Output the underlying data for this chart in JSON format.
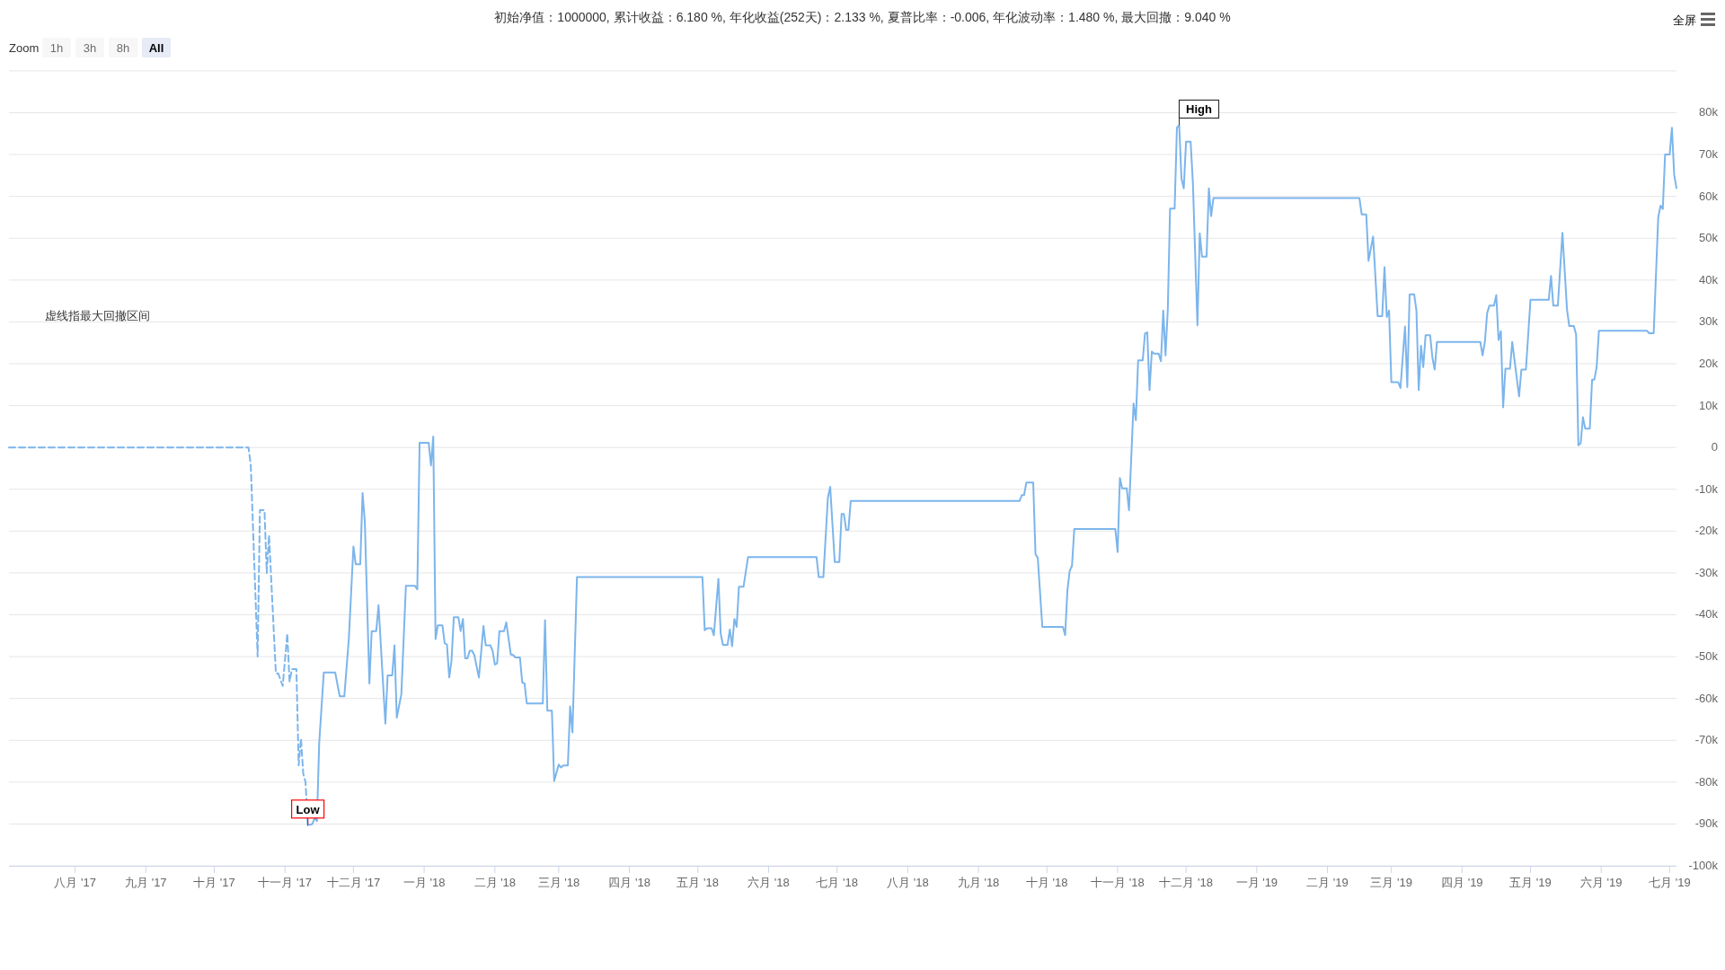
{
  "chart_data": {
    "type": "line",
    "title": "初始净值：1000000, 累计收益：6.180 %, 年化收益(252天)：2.133 %, 夏普比率：-0.006, 年化波动率：1.480 %, 最大回撤：9.040 %",
    "xlim": [
      "2017-07-03",
      "2019-07-04"
    ],
    "ylim": [
      -100000,
      90000
    ],
    "xticks": [
      {
        "value": "2017-08-01",
        "label": "八月 '17"
      },
      {
        "value": "2017-09-01",
        "label": "九月 '17"
      },
      {
        "value": "2017-10-01",
        "label": "十月 '17"
      },
      {
        "value": "2017-11-01",
        "label": "十一月 '17"
      },
      {
        "value": "2017-12-01",
        "label": "十二月 '17"
      },
      {
        "value": "2018-01-01",
        "label": "一月 '18"
      },
      {
        "value": "2018-02-01",
        "label": "二月 '18"
      },
      {
        "value": "2018-03-01",
        "label": "三月 '18"
      },
      {
        "value": "2018-04-01",
        "label": "四月 '18"
      },
      {
        "value": "2018-05-01",
        "label": "五月 '18"
      },
      {
        "value": "2018-06-01",
        "label": "六月 '18"
      },
      {
        "value": "2018-07-01",
        "label": "七月 '18"
      },
      {
        "value": "2018-08-01",
        "label": "八月 '18"
      },
      {
        "value": "2018-09-01",
        "label": "九月 '18"
      },
      {
        "value": "2018-10-01",
        "label": "十月 '18"
      },
      {
        "value": "2018-11-01",
        "label": "十一月 '18"
      },
      {
        "value": "2018-12-01",
        "label": "十二月 '18"
      },
      {
        "value": "2019-01-01",
        "label": "一月 '19"
      },
      {
        "value": "2019-02-01",
        "label": "二月 '19"
      },
      {
        "value": "2019-03-01",
        "label": "三月 '19"
      },
      {
        "value": "2019-04-01",
        "label": "四月 '19"
      },
      {
        "value": "2019-05-01",
        "label": "五月 '19"
      },
      {
        "value": "2019-06-01",
        "label": "六月 '19"
      },
      {
        "value": "2019-07-01",
        "label": "七月 '19"
      }
    ],
    "yticks": [
      {
        "value": -100000,
        "label": "-100k"
      },
      {
        "value": -90000,
        "label": "-90k"
      },
      {
        "value": -80000,
        "label": "-80k"
      },
      {
        "value": -70000,
        "label": "-70k"
      },
      {
        "value": -60000,
        "label": "-60k"
      },
      {
        "value": -50000,
        "label": "-50k"
      },
      {
        "value": -40000,
        "label": "-40k"
      },
      {
        "value": -30000,
        "label": "-30k"
      },
      {
        "value": -20000,
        "label": "-20k"
      },
      {
        "value": -10000,
        "label": "-10k"
      },
      0,
      {
        "value": 10000,
        "label": "10k"
      },
      {
        "value": 20000,
        "label": "20k"
      },
      {
        "value": 30000,
        "label": "30k"
      },
      {
        "value": 40000,
        "label": "40k"
      },
      {
        "value": 50000,
        "label": "50k"
      },
      {
        "value": 60000,
        "label": "60k"
      },
      {
        "value": 70000,
        "label": "70k"
      },
      {
        "value": 80000,
        "label": "80k"
      }
    ],
    "grid": "y",
    "marker": "none",
    "series": [
      {
        "color": "#7cb5ec",
        "line_style": "dashed",
        "x": [
          "2017-07-03",
          "2017-10-16",
          "2017-10-17",
          "2017-10-20",
          "2017-10-21",
          "2017-10-23",
          "2017-10-24",
          "2017-10-25",
          "2017-10-28",
          "2017-10-29",
          "2017-10-31",
          "2017-11-02",
          "2017-11-03",
          "2017-11-04",
          "2017-11-06",
          "2017-11-07",
          "2017-11-08",
          "2017-11-09",
          "2017-11-10",
          "2017-11-11"
        ],
        "values": [
          0,
          0,
          -4300,
          -50000,
          -15000,
          -15000,
          -30000,
          -21000,
          -54000,
          -54000,
          -57000,
          -44500,
          -56000,
          -53000,
          -53000,
          -76000,
          -69600,
          -78000,
          -80000,
          -90300
        ]
      },
      {
        "color": "#7cb5ec",
        "line_style": "solid",
        "x": [
          "2017-11-11",
          "2017-11-13",
          "2017-11-14",
          "2017-11-15",
          "2017-11-16",
          "2017-11-18",
          "2017-11-23",
          "2017-11-25",
          "2017-11-27",
          "2017-11-29",
          "2017-12-01",
          "2017-12-02",
          "2017-12-04",
          "2017-12-05",
          "2017-12-06",
          "2017-12-08",
          "2017-12-09",
          "2017-12-11",
          "2017-12-12",
          "2017-12-15",
          "2017-12-16",
          "2017-12-18",
          "2017-12-19",
          "2017-12-20",
          "2017-12-22",
          "2017-12-24",
          "2017-12-28",
          "2017-12-29",
          "2017-12-30",
          "2018-01-03",
          "2018-01-04",
          "2018-01-05",
          "2018-01-06",
          "2018-01-07",
          "2018-01-09",
          "2018-01-10",
          "2018-01-11",
          "2018-01-12",
          "2018-01-13",
          "2018-01-14",
          "2018-01-16",
          "2018-01-17",
          "2018-01-18",
          "2018-01-19",
          "2018-01-20",
          "2018-01-21",
          "2018-01-22",
          "2018-01-23",
          "2018-01-25",
          "2018-01-27",
          "2018-01-28",
          "2018-01-30",
          "2018-01-31",
          "2018-02-01",
          "2018-02-02",
          "2018-02-03",
          "2018-02-05",
          "2018-02-06",
          "2018-02-08",
          "2018-02-09",
          "2018-02-10",
          "2018-02-12",
          "2018-02-13",
          "2018-02-14",
          "2018-02-15",
          "2018-02-22",
          "2018-02-23",
          "2018-02-24",
          "2018-02-26",
          "2018-02-27",
          "2018-03-01",
          "2018-03-02",
          "2018-03-03",
          "2018-03-05",
          "2018-03-06",
          "2018-03-07",
          "2018-03-09",
          "2018-05-03",
          "2018-05-04",
          "2018-05-05",
          "2018-05-07",
          "2018-05-08",
          "2018-05-10",
          "2018-05-11",
          "2018-05-12",
          "2018-05-14",
          "2018-05-15",
          "2018-05-16",
          "2018-05-17",
          "2018-05-18",
          "2018-05-19",
          "2018-05-21",
          "2018-05-23",
          "2018-06-22",
          "2018-06-23",
          "2018-06-25",
          "2018-06-27",
          "2018-06-28",
          "2018-06-30",
          "2018-07-02",
          "2018-07-03",
          "2018-07-04",
          "2018-07-05",
          "2018-07-06",
          "2018-07-07",
          "2018-09-19",
          "2018-09-20",
          "2018-09-21",
          "2018-09-22",
          "2018-09-25",
          "2018-09-26",
          "2018-09-27",
          "2018-09-29",
          "2018-10-08",
          "2018-10-09",
          "2018-10-10",
          "2018-10-11",
          "2018-10-12",
          "2018-10-13",
          "2018-10-31",
          "2018-11-01",
          "2018-11-02",
          "2018-11-03",
          "2018-11-05",
          "2018-11-06",
          "2018-11-08",
          "2018-11-09",
          "2018-11-10",
          "2018-11-12",
          "2018-11-13",
          "2018-11-14",
          "2018-11-15",
          "2018-11-16",
          "2018-11-17",
          "2018-11-19",
          "2018-11-20",
          "2018-11-21",
          "2018-11-22",
          "2018-11-23",
          "2018-11-24",
          "2018-11-26",
          "2018-11-27",
          "2018-11-28",
          "2018-11-29",
          "2018-11-30",
          "2018-12-01",
          "2018-12-03",
          "2018-12-04",
          "2018-12-06",
          "2018-12-07",
          "2018-12-08",
          "2018-12-10",
          "2018-12-11",
          "2018-12-12",
          "2018-12-13",
          "2019-02-15",
          "2019-02-16",
          "2019-02-18",
          "2019-02-19",
          "2019-02-21",
          "2019-02-23",
          "2019-02-25",
          "2019-02-26",
          "2019-02-27",
          "2019-02-28",
          "2019-03-01",
          "2019-03-04",
          "2019-03-05",
          "2019-03-07",
          "2019-03-08",
          "2019-03-09",
          "2019-03-11",
          "2019-03-12",
          "2019-03-13",
          "2019-03-14",
          "2019-03-15",
          "2019-03-16",
          "2019-03-18",
          "2019-03-19",
          "2019-03-20",
          "2019-03-21",
          "2019-04-09",
          "2019-04-10",
          "2019-04-11",
          "2019-04-12",
          "2019-04-13",
          "2019-04-15",
          "2019-04-16",
          "2019-04-17",
          "2019-04-18",
          "2019-04-19",
          "2019-04-20",
          "2019-04-22",
          "2019-04-23",
          "2019-04-26",
          "2019-04-27",
          "2019-04-29",
          "2019-05-01",
          "2019-05-09",
          "2019-05-10",
          "2019-05-11",
          "2019-05-13",
          "2019-05-15",
          "2019-05-17",
          "2019-05-18",
          "2019-05-20",
          "2019-05-21",
          "2019-05-22",
          "2019-05-23",
          "2019-05-24",
          "2019-05-25",
          "2019-05-27",
          "2019-05-28",
          "2019-05-29",
          "2019-05-30",
          "2019-05-31",
          "2019-06-21",
          "2019-06-22",
          "2019-06-24",
          "2019-06-26",
          "2019-06-27",
          "2019-06-28",
          "2019-06-29",
          "2019-07-01",
          "2019-07-02",
          "2019-07-03",
          "2019-07-04"
        ],
        "values": [
          -90300,
          -90000,
          -88600,
          -89300,
          -70600,
          -53800,
          -53800,
          -59500,
          -59500,
          -45600,
          -23700,
          -27900,
          -27900,
          -10900,
          -17800,
          -56400,
          -43900,
          -43900,
          -37700,
          -66000,
          -54500,
          -54500,
          -47300,
          -64600,
          -59000,
          -33100,
          -33100,
          -33900,
          1100,
          1100,
          -4300,
          2600,
          -45800,
          -42500,
          -42500,
          -46800,
          -47100,
          -55000,
          -50900,
          -40600,
          -40600,
          -43900,
          -41000,
          -50400,
          -50400,
          -48600,
          -48600,
          -49600,
          -55000,
          -42700,
          -47300,
          -47300,
          -48600,
          -51900,
          -51600,
          -43900,
          -43900,
          -41800,
          -49500,
          -49600,
          -50200,
          -50200,
          -56200,
          -56400,
          -61200,
          -61200,
          -41300,
          -62900,
          -62900,
          -79700,
          -75800,
          -76500,
          -76000,
          -76000,
          -61900,
          -68100,
          -31000,
          -31000,
          -43700,
          -43200,
          -43200,
          -44900,
          -31400,
          -44500,
          -47200,
          -47200,
          -43500,
          -47500,
          -41000,
          -42900,
          -33300,
          -33300,
          -26200,
          -26200,
          -31000,
          -31000,
          -12000,
          -9400,
          -27400,
          -27400,
          -15900,
          -15900,
          -19700,
          -19700,
          -12800,
          -12800,
          -11400,
          -11400,
          -8400,
          -8400,
          -25500,
          -26400,
          -42900,
          -42900,
          -44900,
          -34100,
          -29500,
          -28300,
          -19500,
          -19500,
          -25000,
          -7300,
          -9800,
          -9800,
          -15000,
          10500,
          6500,
          20800,
          20800,
          27200,
          27500,
          13700,
          22900,
          22400,
          22400,
          20600,
          32700,
          22000,
          33000,
          57100,
          57100,
          76400,
          77000,
          64200,
          61900,
          73100,
          73100,
          63300,
          29200,
          51200,
          45600,
          45600,
          61900,
          55300,
          59600,
          59600,
          55700,
          55700,
          44600,
          50400,
          31400,
          31400,
          43100,
          31200,
          32700,
          15600,
          15600,
          14200,
          28900,
          14400,
          36600,
          36600,
          32700,
          13700,
          24300,
          19200,
          26800,
          26800,
          21500,
          18600,
          25200,
          25200,
          22000,
          25200,
          32100,
          33900,
          33900,
          36400,
          25700,
          27800,
          9600,
          18800,
          18800,
          25200,
          12200,
          18600,
          18600,
          35300,
          35300,
          41000,
          33900,
          33900,
          51300,
          33000,
          29000,
          29000,
          27000,
          500,
          1000,
          7200,
          4500,
          4500,
          16200,
          16200,
          19200,
          27900,
          27900,
          27300,
          27300,
          55000,
          57800,
          57000,
          70000,
          70000,
          76400,
          65100,
          62000
        ]
      }
    ],
    "annotations": [
      "Zoom",
      "1h",
      "3h",
      "8h",
      "All",
      "全屏",
      "虚线指最大回撤区间",
      {
        "text": "High",
        "x": "2018-11-28",
        "y": 77000
      },
      {
        "text": "Low",
        "x": "2017-11-11",
        "y": -90300
      }
    ]
  }
}
